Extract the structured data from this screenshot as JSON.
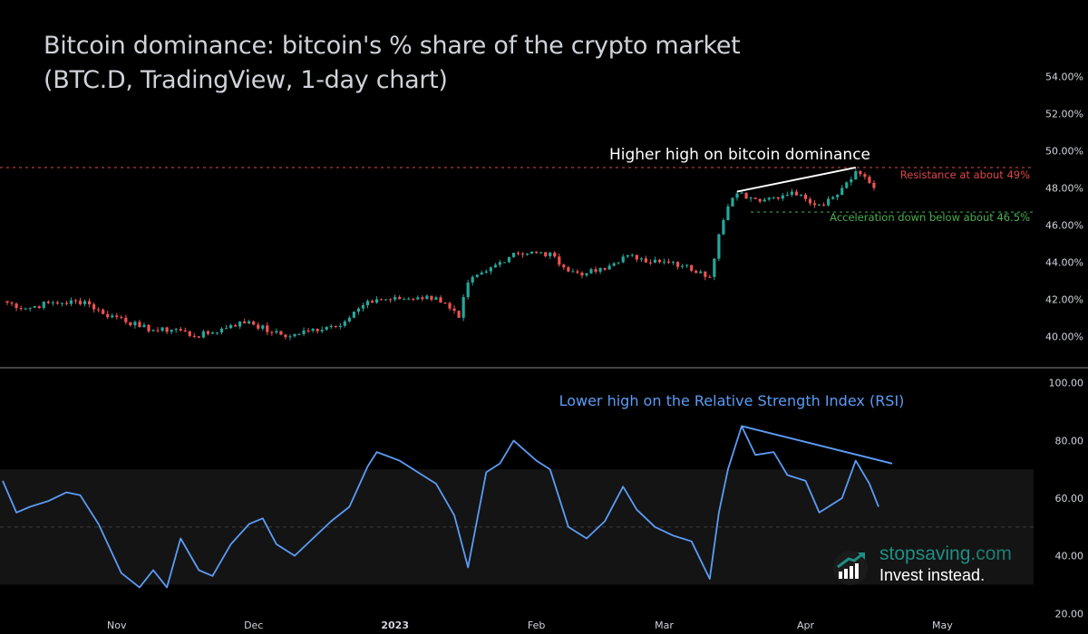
{
  "title_line1": "Bitcoin dominance: bitcoin's % share of the crypto market",
  "title_line2": "(BTC.D, TradingView, 1-day chart)",
  "logo": {
    "brand_main": "stopsaving",
    "brand_suffix": ".com",
    "tagline": "Invest instead."
  },
  "colors": {
    "up": "#26a69a",
    "down": "#ef5350",
    "rsi": "#5b9cf6",
    "resistance": "#e0474c",
    "support": "#4caf50",
    "band": "#141414"
  },
  "chart_data": [
    {
      "type": "candlestick",
      "title": "",
      "ylim": [
        38.6,
        55.2
      ],
      "y_ticks": [
        "40.00%",
        "42.00%",
        "44.00%",
        "46.00%",
        "48.00%",
        "50.00%",
        "52.00%",
        "54.00%"
      ],
      "y_tick_values": [
        40,
        42,
        44,
        46,
        48,
        50,
        52,
        54
      ],
      "x_tick_labels": [
        "Nov",
        "Dec",
        "2023",
        "Feb",
        "Mar",
        "Apr",
        "May"
      ],
      "x_tick_dates": [
        "2022-11-01",
        "2022-12-01",
        "2023-01-01",
        "2023-02-01",
        "2023-03-01",
        "2023-04-01",
        "2023-05-01"
      ],
      "x_range": [
        "2022-10-07",
        "2023-05-20"
      ],
      "series": [
        {
          "date": "2022-10-07",
          "close": 41.9
        },
        {
          "date": "2022-10-12",
          "close": 41.5
        },
        {
          "date": "2022-10-17",
          "close": 41.8
        },
        {
          "date": "2022-10-20",
          "close": 41.8
        },
        {
          "date": "2022-10-25",
          "close": 41.9
        },
        {
          "date": "2022-10-29",
          "close": 41.2
        },
        {
          "date": "2022-11-02",
          "close": 41.0
        },
        {
          "date": "2022-11-06",
          "close": 40.5
        },
        {
          "date": "2022-11-10",
          "close": 40.3
        },
        {
          "date": "2022-11-14",
          "close": 40.4
        },
        {
          "date": "2022-11-18",
          "close": 40.0
        },
        {
          "date": "2022-11-22",
          "close": 40.2
        },
        {
          "date": "2022-11-26",
          "close": 40.6
        },
        {
          "date": "2022-11-30",
          "close": 40.8
        },
        {
          "date": "2022-12-05",
          "close": 40.2
        },
        {
          "date": "2022-12-09",
          "close": 40.0
        },
        {
          "date": "2022-12-13",
          "close": 40.3
        },
        {
          "date": "2022-12-17",
          "close": 40.5
        },
        {
          "date": "2022-12-21",
          "close": 40.8
        },
        {
          "date": "2022-12-24",
          "close": 41.5
        },
        {
          "date": "2022-12-28",
          "close": 42.0
        },
        {
          "date": "2023-01-02",
          "close": 42.0
        },
        {
          "date": "2023-01-06",
          "close": 42.1
        },
        {
          "date": "2023-01-10",
          "close": 42.1
        },
        {
          "date": "2023-01-13",
          "close": 41.5
        },
        {
          "date": "2023-01-15",
          "close": 41.0
        },
        {
          "date": "2023-01-17",
          "close": 42.9
        },
        {
          "date": "2023-01-21",
          "close": 43.5
        },
        {
          "date": "2023-01-24",
          "close": 44.0
        },
        {
          "date": "2023-01-27",
          "close": 44.5
        },
        {
          "date": "2023-02-01",
          "close": 44.5
        },
        {
          "date": "2023-02-05",
          "close": 44.3
        },
        {
          "date": "2023-02-08",
          "close": 43.5
        },
        {
          "date": "2023-02-12",
          "close": 43.4
        },
        {
          "date": "2023-02-16",
          "close": 43.6
        },
        {
          "date": "2023-02-20",
          "close": 44.3
        },
        {
          "date": "2023-02-24",
          "close": 44.2
        },
        {
          "date": "2023-02-28",
          "close": 44.0
        },
        {
          "date": "2023-03-05",
          "close": 43.8
        },
        {
          "date": "2023-03-09",
          "close": 43.5
        },
        {
          "date": "2023-03-11",
          "close": 43.2
        },
        {
          "date": "2023-03-13",
          "close": 45.5
        },
        {
          "date": "2023-03-15",
          "close": 47.0
        },
        {
          "date": "2023-03-17",
          "close": 47.7
        },
        {
          "date": "2023-03-21",
          "close": 47.4
        },
        {
          "date": "2023-03-25",
          "close": 47.5
        },
        {
          "date": "2023-03-29",
          "close": 47.8
        },
        {
          "date": "2023-04-01",
          "close": 47.4
        },
        {
          "date": "2023-04-04",
          "close": 47.1
        },
        {
          "date": "2023-04-07",
          "close": 47.5
        },
        {
          "date": "2023-04-10",
          "close": 48.3
        },
        {
          "date": "2023-04-12",
          "close": 48.9
        },
        {
          "date": "2023-04-14",
          "close": 48.6
        },
        {
          "date": "2023-04-16",
          "close": 48.0
        }
      ],
      "resistance": {
        "value": 49.1,
        "label": "Resistance at about 49%"
      },
      "support": {
        "value": 46.7,
        "start_date": "2023-03-20",
        "label": "Acceleration down below about 46.5%"
      },
      "trendline": {
        "from": {
          "date": "2023-03-17",
          "value": 47.8
        },
        "to": {
          "date": "2023-04-12",
          "value": 49.1
        },
        "label": "Higher high on bitcoin dominance"
      }
    },
    {
      "type": "line",
      "title": "",
      "ylim": [
        16,
        104
      ],
      "y_ticks": [
        "20.00",
        "40.00",
        "60.00",
        "80.00",
        "100.00"
      ],
      "y_tick_values": [
        20,
        40,
        60,
        80,
        100
      ],
      "band": [
        30,
        70
      ],
      "midline": 50,
      "series": [
        {
          "date": "2022-10-07",
          "value": 66
        },
        {
          "date": "2022-10-10",
          "value": 55
        },
        {
          "date": "2022-10-13",
          "value": 57
        },
        {
          "date": "2022-10-17",
          "value": 59
        },
        {
          "date": "2022-10-21",
          "value": 62
        },
        {
          "date": "2022-10-24",
          "value": 61
        },
        {
          "date": "2022-10-28",
          "value": 51
        },
        {
          "date": "2022-11-02",
          "value": 34
        },
        {
          "date": "2022-11-06",
          "value": 29
        },
        {
          "date": "2022-11-09",
          "value": 35
        },
        {
          "date": "2022-11-12",
          "value": 29
        },
        {
          "date": "2022-11-15",
          "value": 46
        },
        {
          "date": "2022-11-19",
          "value": 35
        },
        {
          "date": "2022-11-22",
          "value": 33
        },
        {
          "date": "2022-11-26",
          "value": 44
        },
        {
          "date": "2022-11-30",
          "value": 51
        },
        {
          "date": "2022-12-03",
          "value": 53
        },
        {
          "date": "2022-12-06",
          "value": 44
        },
        {
          "date": "2022-12-10",
          "value": 40
        },
        {
          "date": "2022-12-14",
          "value": 46
        },
        {
          "date": "2022-12-18",
          "value": 52
        },
        {
          "date": "2022-12-22",
          "value": 57
        },
        {
          "date": "2022-12-26",
          "value": 71
        },
        {
          "date": "2022-12-28",
          "value": 76
        },
        {
          "date": "2023-01-02",
          "value": 73
        },
        {
          "date": "2023-01-06",
          "value": 69
        },
        {
          "date": "2023-01-10",
          "value": 65
        },
        {
          "date": "2023-01-14",
          "value": 54
        },
        {
          "date": "2023-01-17",
          "value": 36
        },
        {
          "date": "2023-01-21",
          "value": 69
        },
        {
          "date": "2023-01-24",
          "value": 72
        },
        {
          "date": "2023-01-27",
          "value": 80
        },
        {
          "date": "2023-02-01",
          "value": 73
        },
        {
          "date": "2023-02-04",
          "value": 70
        },
        {
          "date": "2023-02-08",
          "value": 50
        },
        {
          "date": "2023-02-12",
          "value": 46
        },
        {
          "date": "2023-02-16",
          "value": 52
        },
        {
          "date": "2023-02-20",
          "value": 64
        },
        {
          "date": "2023-02-23",
          "value": 56
        },
        {
          "date": "2023-02-27",
          "value": 50
        },
        {
          "date": "2023-03-03",
          "value": 47
        },
        {
          "date": "2023-03-07",
          "value": 45
        },
        {
          "date": "2023-03-11",
          "value": 32
        },
        {
          "date": "2023-03-13",
          "value": 55
        },
        {
          "date": "2023-03-15",
          "value": 70
        },
        {
          "date": "2023-03-18",
          "value": 85
        },
        {
          "date": "2023-03-21",
          "value": 75
        },
        {
          "date": "2023-03-25",
          "value": 76
        },
        {
          "date": "2023-03-28",
          "value": 68
        },
        {
          "date": "2023-04-01",
          "value": 66
        },
        {
          "date": "2023-04-04",
          "value": 55
        },
        {
          "date": "2023-04-07",
          "value": 58
        },
        {
          "date": "2023-04-09",
          "value": 60
        },
        {
          "date": "2023-04-12",
          "value": 73
        },
        {
          "date": "2023-04-15",
          "value": 65
        },
        {
          "date": "2023-04-17",
          "value": 57
        }
      ],
      "trendline": {
        "from": {
          "date": "2023-03-18",
          "value": 85
        },
        "to": {
          "date": "2023-04-20",
          "value": 72
        },
        "label": "Lower high on the Relative Strength Index (RSI)"
      }
    }
  ]
}
